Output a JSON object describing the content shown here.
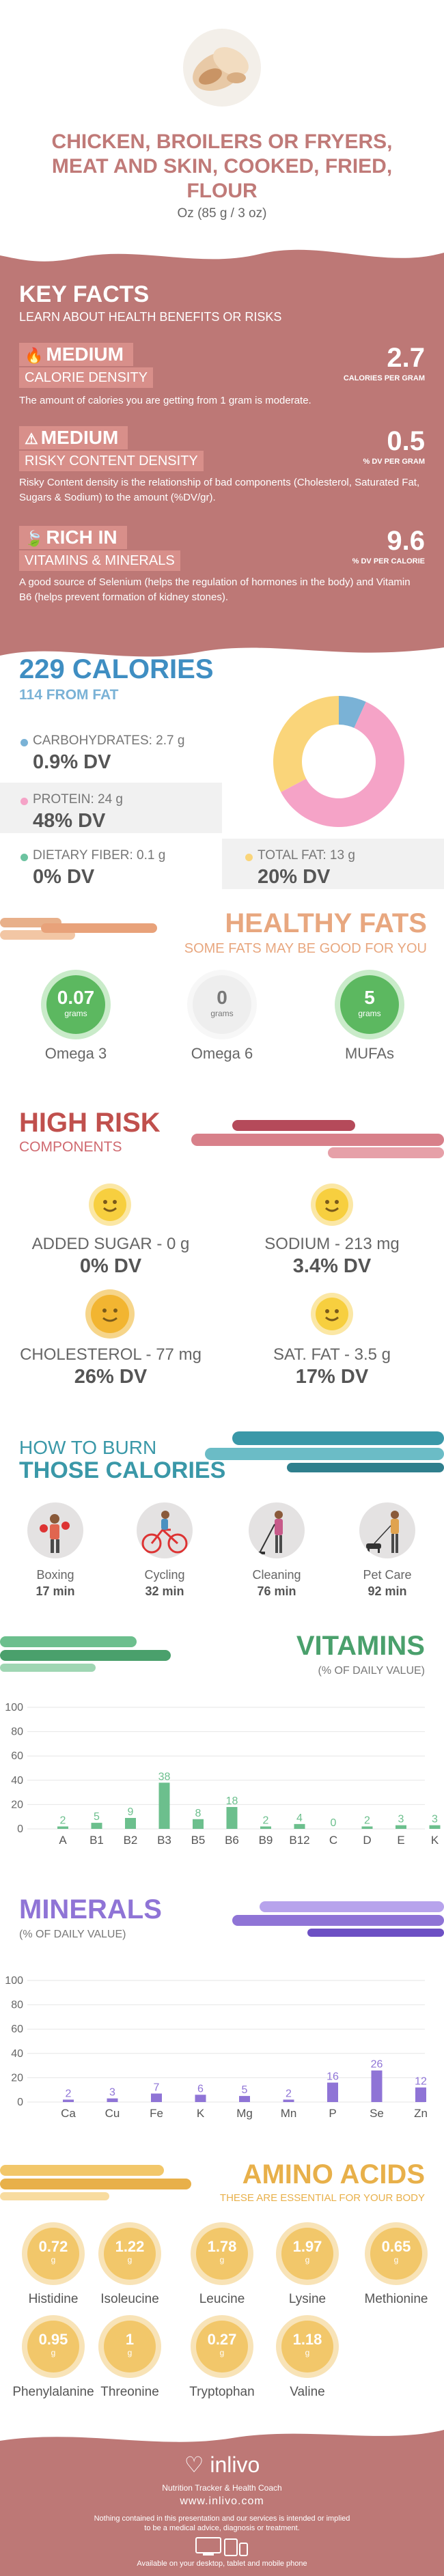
{
  "header": {
    "title_line1": "CHICKEN, BROILERS OR FRYERS,",
    "title_line2": "MEAT AND SKIN, COOKED, FRIED,",
    "title_line3": "FLOUR",
    "serving": "Oz (85 g / 3 oz)"
  },
  "key_facts": {
    "title": "KEY FACTS",
    "subtitle": "LEARN ABOUT HEALTH BENEFITS OR RISKS",
    "items": [
      {
        "level": "MEDIUM",
        "label": "CALORIE DENSITY",
        "value": "2.7",
        "unit": "CALORIES PER GRAM",
        "desc": "The amount of calories you are getting from 1 gram is moderate."
      },
      {
        "level": "MEDIUM",
        "label": "RISKY CONTENT DENSITY",
        "value": "0.5",
        "unit": "% DV PER GRAM",
        "desc": "Risky Content density is the relationship of bad components (Cholesterol, Saturated Fat, Sugars & Sodium) to the amount (%DV/gr)."
      },
      {
        "level": "RICH  IN",
        "label": "VITAMINS & MINERALS",
        "value": "9.6",
        "unit": "% DV PER CALORIE",
        "desc": "A good source of Selenium (helps the regulation of hormones in the body) and Vitamin B6 (helps prevent formation of kidney stones)."
      }
    ]
  },
  "calories": {
    "total": "229 CALORIES",
    "from_fat": "114 FROM FAT",
    "nutrients": [
      {
        "label": "CARBOHYDRATES: 2.7 g",
        "dv": "0.9% DV",
        "color": "#7ab2d6"
      },
      {
        "label": "PROTEIN: 24 g",
        "dv": "48% DV",
        "color": "#f5a3c7"
      },
      {
        "label": "DIETARY FIBER: 0.1 g",
        "dv": "0% DV",
        "color": "#6cc3a0"
      },
      {
        "label": "TOTAL FAT: 13 g",
        "dv": "20% DV",
        "color": "#fad57a"
      }
    ],
    "donut": [
      {
        "name": "carbohydrates",
        "value": 2.7,
        "color": "#7ab2d6"
      },
      {
        "name": "protein",
        "value": 24,
        "color": "#f5a3c7"
      },
      {
        "name": "fat",
        "value": 13,
        "color": "#fad57a"
      }
    ]
  },
  "healthy_fats": {
    "title": "HEALTHY FATS",
    "subtitle": "SOME FATS MAY BE GOOD FOR YOU",
    "items": [
      {
        "value": "0.07",
        "unit": "grams",
        "label": "Omega 3",
        "color": "#5cb860"
      },
      {
        "value": "0",
        "unit": "grams",
        "label": "Omega 6",
        "color": "#eeeeee"
      },
      {
        "value": "5",
        "unit": "grams",
        "label": "MUFAs",
        "color": "#5cb860"
      }
    ]
  },
  "high_risk": {
    "title": "HIGH RISK",
    "subtitle": "COMPONENTS",
    "items": [
      {
        "label": "ADDED SUGAR - 0 g",
        "dv": "0% DV"
      },
      {
        "label": "SODIUM - 213 mg",
        "dv": "3.4% DV"
      },
      {
        "label": "CHOLESTEROL - 77 mg",
        "dv": "26% DV"
      },
      {
        "label": "SAT. FAT - 3.5 g",
        "dv": "17% DV"
      }
    ]
  },
  "burn": {
    "title_line1": "HOW TO BURN",
    "title_line2": "THOSE CALORIES",
    "items": [
      {
        "label": "Boxing",
        "min": "17 min"
      },
      {
        "label": "Cycling",
        "min": "32 min"
      },
      {
        "label": "Cleaning",
        "min": "76 min"
      },
      {
        "label": "Pet Care",
        "min": "92 min"
      }
    ]
  },
  "vitamins": {
    "title": "VITAMINS",
    "subtitle": "(% OF DAILY VALUE)"
  },
  "minerals": {
    "title": "MINERALS",
    "subtitle": "(% OF DAILY VALUE)"
  },
  "chart_data": [
    {
      "type": "bar",
      "categories": [
        "A",
        "B1",
        "B2",
        "B3",
        "B5",
        "B6",
        "B9",
        "B12",
        "C",
        "D",
        "E",
        "K"
      ],
      "values": [
        2,
        5,
        9,
        38,
        8,
        18,
        2,
        4,
        0,
        2,
        3,
        3
      ],
      "ylim": [
        0,
        100
      ],
      "yticks": [
        0,
        20,
        40,
        60,
        80,
        100
      ],
      "color": "#6cbf8d"
    },
    {
      "type": "bar",
      "categories": [
        "Ca",
        "Cu",
        "Fe",
        "K",
        "Mg",
        "Mn",
        "P",
        "Se",
        "Zn"
      ],
      "values": [
        2,
        3,
        7,
        6,
        5,
        2,
        16,
        26,
        12
      ],
      "ylim": [
        0,
        100
      ],
      "yticks": [
        0,
        20,
        40,
        60,
        80,
        100
      ],
      "color": "#8f74d6"
    }
  ],
  "amino": {
    "title": "AMINO ACIDS",
    "subtitle": "THESE ARE ESSENTIAL FOR YOUR BODY",
    "unit": "g",
    "items": [
      {
        "value": "0.72",
        "label": "Histidine"
      },
      {
        "value": "1.22",
        "label": "Isoleucine"
      },
      {
        "value": "1.78",
        "label": "Leucine"
      },
      {
        "value": "1.97",
        "label": "Lysine"
      },
      {
        "value": "0.65",
        "label": "Methionine"
      },
      {
        "value": "0.95",
        "label": "Phenylalanine"
      },
      {
        "value": "1",
        "label": "Threonine"
      },
      {
        "value": "0.27",
        "label": "Tryptophan"
      },
      {
        "value": "1.18",
        "label": "Valine"
      }
    ]
  },
  "footer": {
    "brand": "inlivo",
    "tagline": "Nutrition Tracker & Health Coach",
    "url": "www.inlivo.com",
    "disclaimer_line1": "Nothing contained in this presentation and our services is intended or implied",
    "disclaimer_line2": "to be a medical advice, diagnosis or treatment.",
    "devices": "Available on your desktop, tablet and mobile phone"
  }
}
